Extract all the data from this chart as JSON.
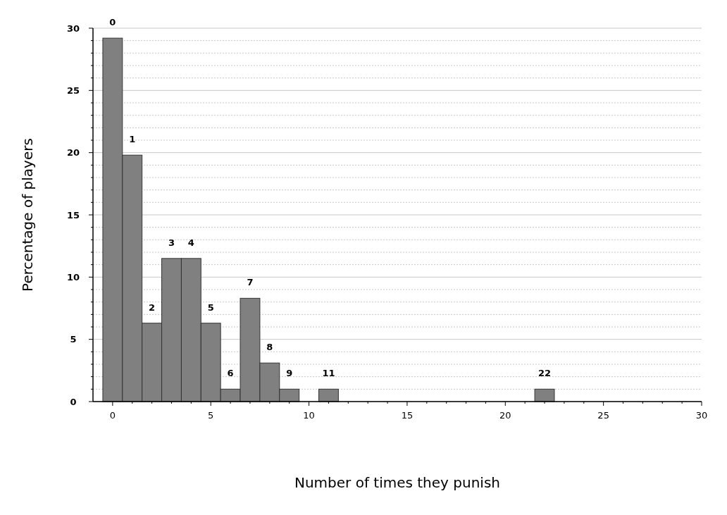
{
  "chart_data": {
    "type": "bar",
    "xlabel": "Number of times they punish",
    "ylabel": "Percentage of players",
    "x": [
      0,
      1,
      2,
      3,
      4,
      5,
      6,
      7,
      8,
      9,
      11,
      22
    ],
    "values": [
      29.2,
      19.8,
      6.3,
      11.5,
      11.5,
      6.3,
      1,
      8.3,
      3.1,
      1,
      1,
      1
    ],
    "color": "#808080",
    "xlim": [
      -1,
      30
    ],
    "xticks": [
      0,
      {
        "value": 1,
        "label": null
      },
      {
        "value": 2,
        "label": null
      },
      {
        "value": 3,
        "label": null
      },
      {
        "value": 4,
        "label": null
      },
      5,
      {
        "value": 6,
        "label": null
      },
      {
        "value": 7,
        "label": null
      },
      {
        "value": 8,
        "label": null
      },
      {
        "value": 9,
        "label": null
      },
      10,
      {
        "value": 11,
        "label": null
      },
      {
        "value": 12,
        "label": null
      },
      {
        "value": 13,
        "label": null
      },
      {
        "value": 14,
        "label": null
      },
      15,
      {
        "value": 16,
        "label": null
      },
      {
        "value": 17,
        "label": null
      },
      {
        "value": 18,
        "label": null
      },
      {
        "value": 19,
        "label": null
      },
      20,
      {
        "value": 21,
        "label": null
      },
      {
        "value": 22,
        "label": null
      },
      {
        "value": 23,
        "label": null
      },
      {
        "value": 24,
        "label": null
      },
      25,
      {
        "value": 26,
        "label": null
      },
      {
        "value": 27,
        "label": null
      },
      {
        "value": 28,
        "label": null
      },
      {
        "value": 29,
        "label": null
      },
      30
    ],
    "ylim": [
      0,
      30
    ],
    "yticks": [
      0,
      {
        "value": 1,
        "label": null
      },
      {
        "value": 2,
        "label": null
      },
      {
        "value": 3,
        "label": null
      },
      {
        "value": 4,
        "label": null
      },
      5,
      {
        "value": 6,
        "label": null
      },
      {
        "value": 7,
        "label": null
      },
      {
        "value": 8,
        "label": null
      },
      {
        "value": 9,
        "label": null
      },
      10,
      {
        "value": 11,
        "label": null
      },
      {
        "value": 12,
        "label": null
      },
      {
        "value": 13,
        "label": null
      },
      {
        "value": 14,
        "label": null
      },
      15,
      {
        "value": 16,
        "label": null
      },
      {
        "value": 17,
        "label": null
      },
      {
        "value": 18,
        "label": null
      },
      {
        "value": 19,
        "label": null
      },
      20,
      {
        "value": 21,
        "label": null
      },
      {
        "value": 22,
        "label": null
      },
      {
        "value": 23,
        "label": null
      },
      {
        "value": 24,
        "label": null
      },
      25,
      {
        "value": 26,
        "label": null
      },
      {
        "value": 27,
        "label": null
      },
      {
        "value": 28,
        "label": null
      },
      {
        "value": 29,
        "label": null
      },
      30
    ],
    "grid": "y",
    "annotations": [
      {
        "text": "0",
        "x": 0,
        "y": 29.2
      },
      {
        "text": "1",
        "x": 1,
        "y": 19.8
      },
      {
        "text": "2",
        "x": 2,
        "y": 6.3
      },
      {
        "text": "3",
        "x": 3,
        "y": 11.5
      },
      {
        "text": "4",
        "x": 4,
        "y": 11.5
      },
      {
        "text": "5",
        "x": 5,
        "y": 6.3
      },
      {
        "text": "6",
        "x": 6,
        "y": 1
      },
      {
        "text": "7",
        "x": 7,
        "y": 8.3
      },
      {
        "text": "8",
        "x": 8,
        "y": 3.1
      },
      {
        "text": "9",
        "x": 9,
        "y": 1
      },
      {
        "text": "11",
        "x": 11,
        "y": 1
      },
      {
        "text": "22",
        "x": 22,
        "y": 1
      }
    ]
  }
}
